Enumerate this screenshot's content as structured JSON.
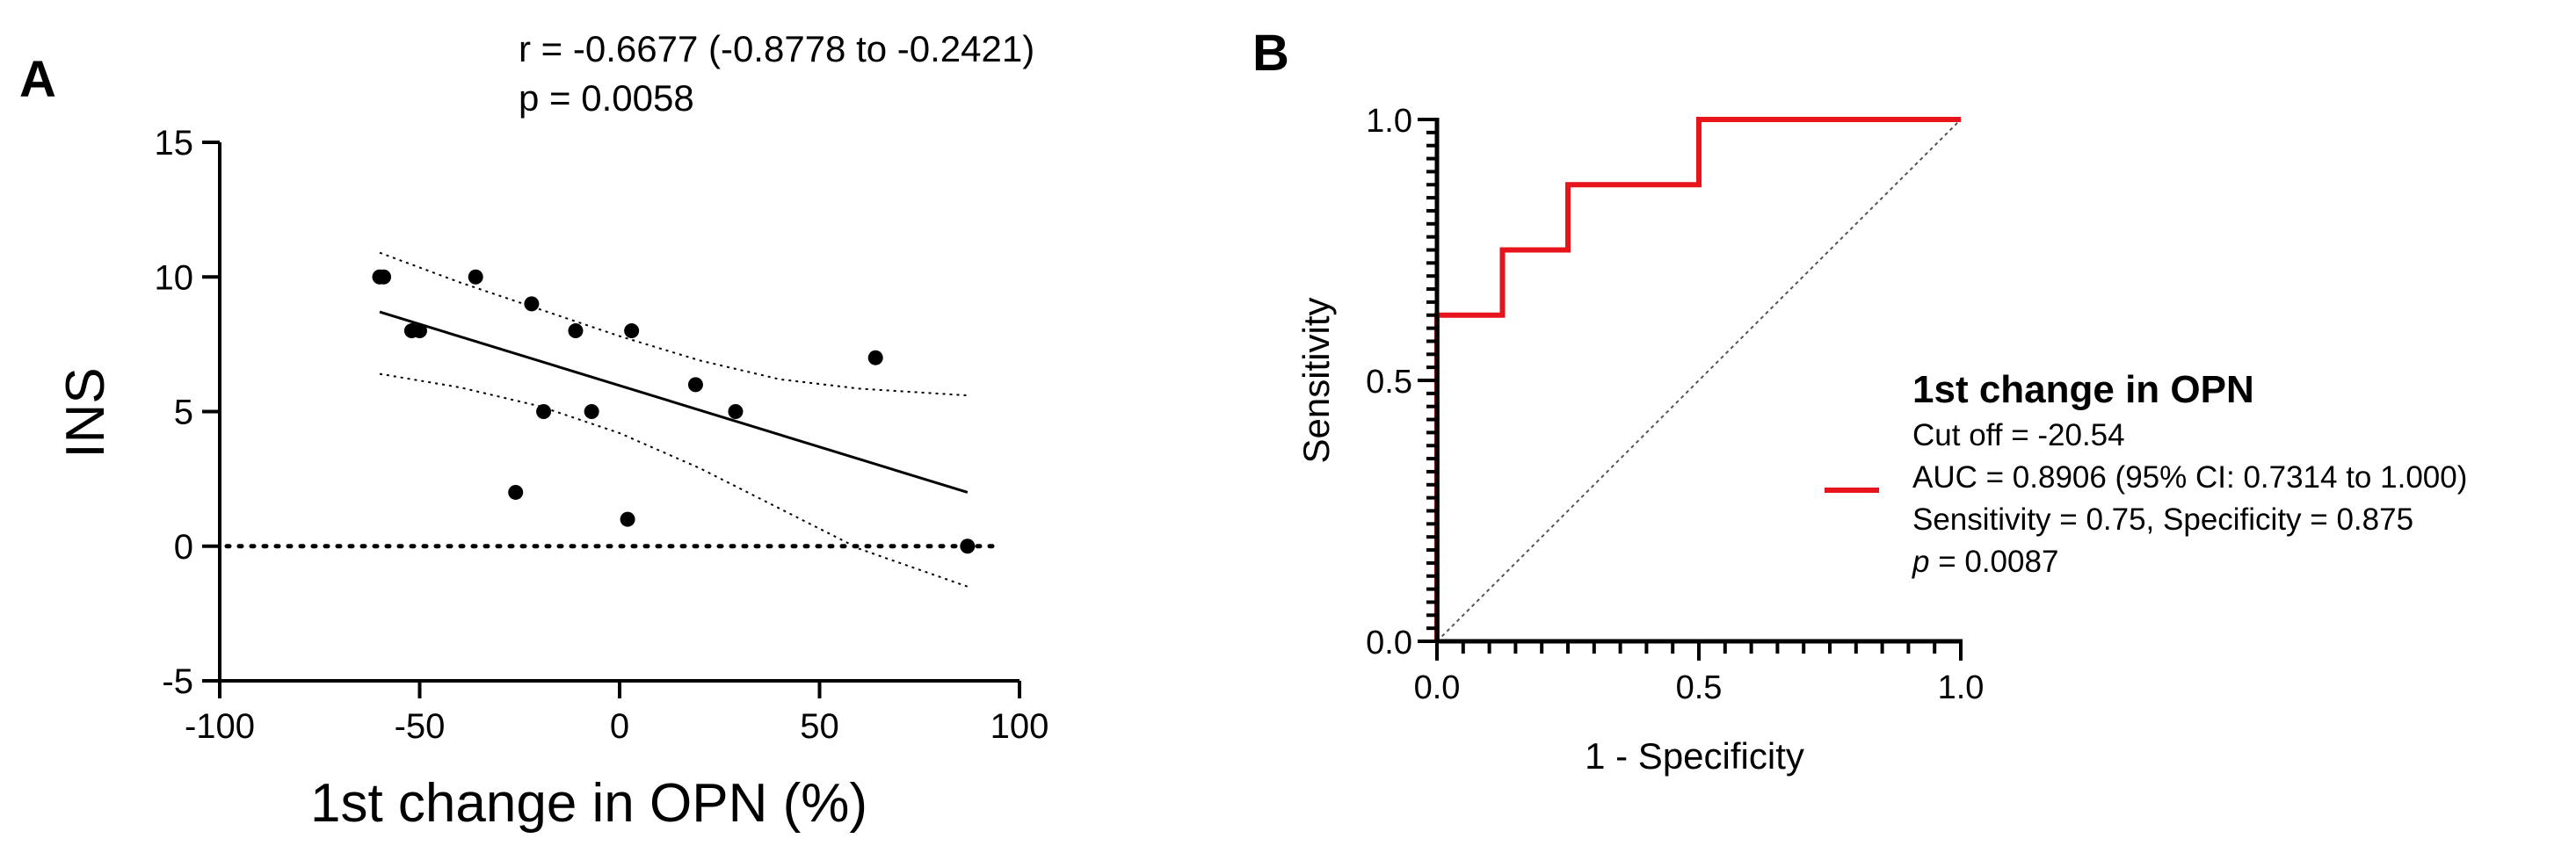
{
  "chart_data": [
    {
      "panel": "A",
      "type": "scatter",
      "xlabel": "1st change in OPN (%)",
      "ylabel": "INS",
      "xlim": [
        -100,
        100
      ],
      "ylim": [
        -5,
        15
      ],
      "xticks": [
        -100,
        -50,
        0,
        50,
        100
      ],
      "yticks": [
        -5,
        0,
        5,
        10,
        15
      ],
      "annotation": {
        "r_line": "r = -0.6677 (-0.8778 to -0.2421)",
        "p_line": "p = 0.0058"
      },
      "points": [
        {
          "x": -60,
          "y": 10
        },
        {
          "x": -59,
          "y": 10
        },
        {
          "x": -52,
          "y": 8
        },
        {
          "x": -50,
          "y": 8
        },
        {
          "x": -36,
          "y": 10
        },
        {
          "x": -26,
          "y": 2
        },
        {
          "x": -22,
          "y": 9
        },
        {
          "x": -19,
          "y": 5
        },
        {
          "x": -11,
          "y": 8
        },
        {
          "x": -7,
          "y": 5
        },
        {
          "x": 2,
          "y": 1
        },
        {
          "x": 3,
          "y": 8
        },
        {
          "x": 19,
          "y": 6
        },
        {
          "x": 29,
          "y": 5
        },
        {
          "x": 64,
          "y": 7
        },
        {
          "x": 87,
          "y": 0
        }
      ],
      "regression_line": {
        "x": [
          -60,
          87
        ],
        "y": [
          8.7,
          2.0
        ]
      },
      "ci_band_upper": {
        "x": [
          -60,
          -40,
          -20,
          0,
          20,
          40,
          60,
          87
        ],
        "y": [
          10.9,
          9.8,
          8.8,
          7.8,
          6.9,
          6.2,
          5.85,
          5.6
        ]
      },
      "ci_band_lower": {
        "x": [
          -60,
          -40,
          -20,
          0,
          20,
          40,
          60,
          87
        ],
        "y": [
          6.4,
          5.9,
          5.2,
          4.2,
          2.9,
          1.4,
          -0.1,
          -1.5
        ]
      },
      "reference_line_y": 0
    },
    {
      "panel": "B",
      "type": "line",
      "title": "",
      "xlabel": "1 - Specificity",
      "ylabel": "Sensitivity",
      "xlim": [
        0,
        1
      ],
      "ylim": [
        0,
        1
      ],
      "xticks": [
        "0.0",
        "0.5",
        "1.0"
      ],
      "yticks": [
        "0.0",
        "0.5",
        "1.0"
      ],
      "roc_curve": {
        "x": [
          0,
          0,
          0.125,
          0.125,
          0.25,
          0.25,
          0.5,
          0.5,
          1.0
        ],
        "y": [
          0,
          0.625,
          0.625,
          0.75,
          0.75,
          0.875,
          0.875,
          1.0,
          1.0
        ]
      },
      "diagonal": {
        "x": [
          0,
          1
        ],
        "y": [
          0,
          1
        ]
      },
      "series_color": "#e8141b",
      "legend": {
        "title": "1st change in OPN",
        "line1": "Cut off = -20.54",
        "line2": "AUC = 0.8906 (95% CI: 0.7314 to 1.000)",
        "line3": "Sensitivity = 0.75, Specificity = 0.875",
        "line4_label": "p",
        "line4_value": " = 0.0087"
      }
    }
  ],
  "panel_labels": {
    "a": "A",
    "b": "B"
  }
}
